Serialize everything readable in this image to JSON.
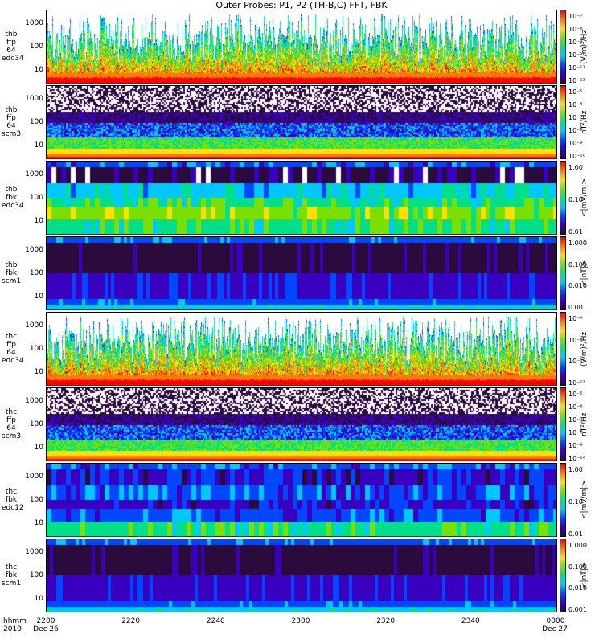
{
  "title": "Outer Probes: P1, P2 (TH-B,C) FFT, FBK",
  "x_axis": {
    "header_1": "hhmm",
    "header_2": "2010",
    "ticks": [
      "2200",
      "2220",
      "2240",
      "2300",
      "2320",
      "2340",
      "0000"
    ],
    "date_left": "Dec 26",
    "date_right": "Dec 27"
  },
  "colors": {
    "spectrogram_scale": [
      "#ffffff",
      "#2b0a3d",
      "#3a00c0",
      "#0047ff",
      "#00c8ff",
      "#00e08a",
      "#7be000",
      "#ffe000",
      "#ff7a00",
      "#ff0000"
    ]
  },
  "panels": [
    {
      "id": "thb-ffp-edc34",
      "label": [
        "thb",
        "ffp",
        "64",
        "edc34"
      ],
      "yticks": [
        "1000",
        "100",
        "10"
      ],
      "cb_ticks": [
        "10⁻⁷",
        "10⁻⁸",
        "10⁻⁹",
        "10⁻¹⁰",
        "10⁻¹¹",
        "10⁻¹²"
      ],
      "cb_label": "(V/m)²/Hz",
      "style": "spiky"
    },
    {
      "id": "thb-ffp-scm3",
      "label": [
        "thb",
        "ffp",
        "64",
        "scm3"
      ],
      "yticks": [
        "1000",
        "100",
        "10"
      ],
      "cb_ticks": [
        "10⁻⁵",
        "10⁻⁶",
        "10⁻⁷",
        "10⁻⁸",
        "10⁻⁹",
        "10⁻¹⁰"
      ],
      "cb_label": "nT²/Hz",
      "style": "noisy"
    },
    {
      "id": "thb-fbk-edc34",
      "label": [
        "thb",
        "fbk",
        "edc34"
      ],
      "yticks": [
        "1000",
        "100",
        "10"
      ],
      "cb_ticks": [
        "1.00",
        "0.10",
        "0.01"
      ],
      "cb_label": "<|mV/m|>",
      "style": "bands_edc"
    },
    {
      "id": "thb-fbk-scm1",
      "label": [
        "thb",
        "fbk",
        "scm1"
      ],
      "yticks": [
        "1000",
        "100",
        "10"
      ],
      "cb_ticks": [
        "1.000",
        "0.100",
        "0.010",
        "0.001"
      ],
      "cb_label": "<|nT|>",
      "style": "bands_scm"
    },
    {
      "id": "thc-ffp-edc34",
      "label": [
        "thc",
        "ffp",
        "64",
        "edc34"
      ],
      "yticks": [
        "1000",
        "100",
        "10"
      ],
      "cb_ticks": [
        "10⁻⁶",
        "10⁻⁸",
        "10⁻¹⁰",
        "10⁻¹²"
      ],
      "cb_label": "(V/m)²/Hz",
      "style": "spiky"
    },
    {
      "id": "thc-ffp-scm3",
      "label": [
        "thc",
        "ffp",
        "64",
        "scm3"
      ],
      "yticks": [
        "1000",
        "100",
        "10"
      ],
      "cb_ticks": [
        "10⁻⁵",
        "10⁻⁶",
        "10⁻⁷",
        "10⁻⁸",
        "10⁻⁹",
        "10⁻¹⁰"
      ],
      "cb_label": "nT²/Hz",
      "style": "noisy"
    },
    {
      "id": "thc-fbk-edc12",
      "label": [
        "thc",
        "fbk",
        "edc12"
      ],
      "yticks": [
        "1000",
        "100",
        "10"
      ],
      "cb_ticks": [
        "1.00",
        "0.10",
        "0.01"
      ],
      "cb_label": "<|mV/m|>",
      "style": "bands_edc2"
    },
    {
      "id": "thc-fbk-scm1",
      "label": [
        "thc",
        "fbk",
        "scm1"
      ],
      "yticks": [
        "1000",
        "100",
        "10"
      ],
      "cb_ticks": [
        "1.000",
        "0.100",
        "0.010",
        "0.001"
      ],
      "cb_label": "<|nT|>",
      "style": "bands_scm"
    }
  ],
  "chart_data": {
    "type": "heatmap",
    "title": "Outer Probes: P1, P2 (TH-B,C) FFT, FBK",
    "x_ticks": [
      "2200",
      "2220",
      "2240",
      "2300",
      "2320",
      "2340",
      "0000"
    ],
    "y_ticks": [
      "1000",
      "100",
      "10"
    ],
    "y_scale": "log",
    "series": [
      {
        "name": "thb ffp 64 edc34",
        "unit": "(V/m)²/Hz"
      },
      {
        "name": "thb ffp 64 scm3",
        "unit": "nT²/Hz"
      },
      {
        "name": "thb fbk edc34",
        "unit": "<|mV/m|>"
      },
      {
        "name": "thb fbk scm1",
        "unit": "<|nT|>"
      },
      {
        "name": "thc ffp 64 edc34",
        "unit": "(V/m)²/Hz"
      },
      {
        "name": "thc ffp 64 scm3",
        "unit": "nT²/Hz"
      },
      {
        "name": "thc fbk edc12",
        "unit": "<|mV/m|>"
      },
      {
        "name": "thc fbk scm1",
        "unit": "<|nT|>"
      }
    ]
  }
}
